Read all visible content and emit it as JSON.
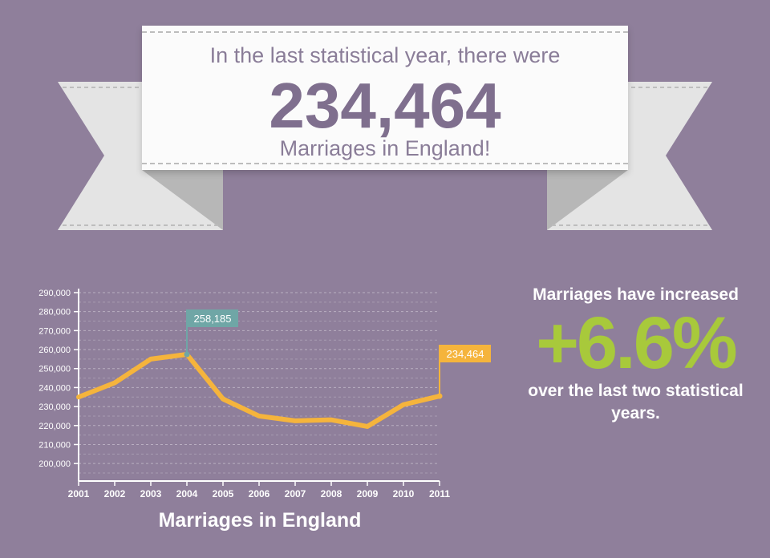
{
  "banner": {
    "line1": "In the last statistical year, there were",
    "number": "234,464",
    "line3": "Marriages in England!"
  },
  "stat": {
    "line1": "Marriages have increased",
    "value": "+6.6%",
    "line3": "over the last two statistical years."
  },
  "colors": {
    "background": "#8f7f9b",
    "line": "#f5b43c",
    "peak_label": "#6fa6a6",
    "end_label": "#f5b43c",
    "accent_green": "#a8c93b"
  },
  "chart_data": {
    "type": "line",
    "title": "Marriages in England",
    "xlabel": "",
    "ylabel": "",
    "x": [
      "2001",
      "2002",
      "2003",
      "2004",
      "2005",
      "2006",
      "2007",
      "2008",
      "2009",
      "2010",
      "2011"
    ],
    "values": [
      235000,
      242500,
      255000,
      257500,
      234000,
      225000,
      222500,
      223000,
      219500,
      231000,
      235500
    ],
    "ylim": [
      195000,
      290000
    ],
    "yticks": [
      "290,000",
      "280,000",
      "270,000",
      "260,000",
      "250,000",
      "240,000",
      "230,000",
      "220,000",
      "210,000",
      "200,000"
    ],
    "grid": true,
    "annotations": [
      {
        "x": "2004",
        "label": "258,185",
        "color": "#6fa6a6"
      },
      {
        "x": "2011",
        "label": "234,464",
        "color": "#f5b43c"
      }
    ]
  }
}
